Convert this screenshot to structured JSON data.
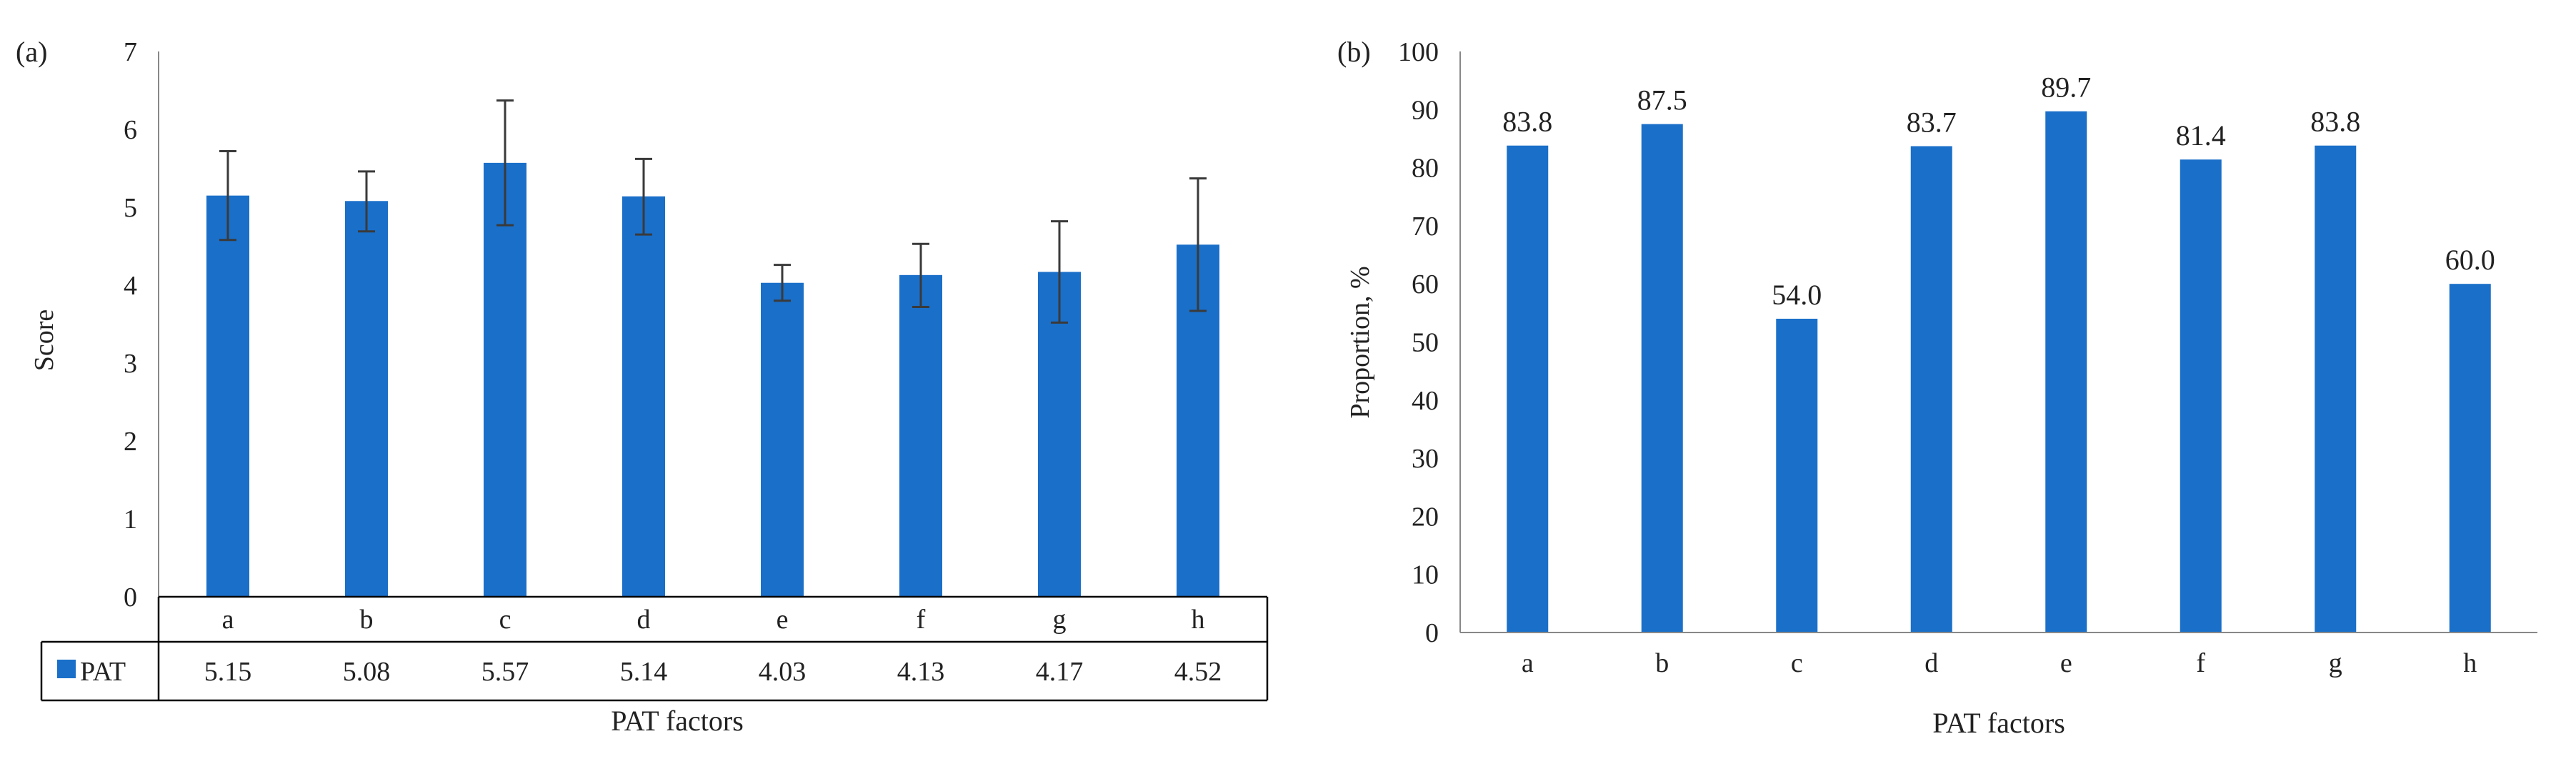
{
  "colors": {
    "bar": "#1a6fc9",
    "axis": "#888888",
    "text": "#222222",
    "error": "#3a3a3a",
    "table": "#000000"
  },
  "chart_data": [
    {
      "panel": "(a)",
      "type": "bar",
      "categories": [
        "a",
        "b",
        "c",
        "d",
        "e",
        "f",
        "g",
        "h"
      ],
      "series": [
        {
          "name": "PAT",
          "values": [
            5.15,
            5.08,
            5.57,
            5.14,
            4.03,
            4.13,
            4.17,
            4.52
          ]
        }
      ],
      "error_bars": [
        [
          4.58,
          5.72
        ],
        [
          4.69,
          5.46
        ],
        [
          4.77,
          6.37
        ],
        [
          4.65,
          5.62
        ],
        [
          3.8,
          4.26
        ],
        [
          3.72,
          4.53
        ],
        [
          3.52,
          4.82
        ],
        [
          3.67,
          5.37
        ]
      ],
      "ylabel": "Score",
      "xlabel": "PAT factors",
      "ylim": [
        0,
        7
      ],
      "yticks": [
        0,
        1,
        2,
        3,
        4,
        5,
        6,
        7
      ],
      "data_table": true
    },
    {
      "panel": "(b)",
      "type": "bar",
      "categories": [
        "a",
        "b",
        "c",
        "d",
        "e",
        "f",
        "g",
        "h"
      ],
      "values": [
        83.8,
        87.5,
        54.0,
        83.7,
        89.7,
        81.4,
        83.8,
        60.0
      ],
      "value_labels": [
        "83.8",
        "87.5",
        "54.0",
        "83.7",
        "89.7",
        "81.4",
        "83.8",
        "60.0"
      ],
      "ylabel": "Proportion, %",
      "xlabel": "PAT factors",
      "ylim": [
        0,
        100
      ],
      "yticks": [
        0,
        10,
        20,
        30,
        40,
        50,
        60,
        70,
        80,
        90,
        100
      ]
    }
  ]
}
